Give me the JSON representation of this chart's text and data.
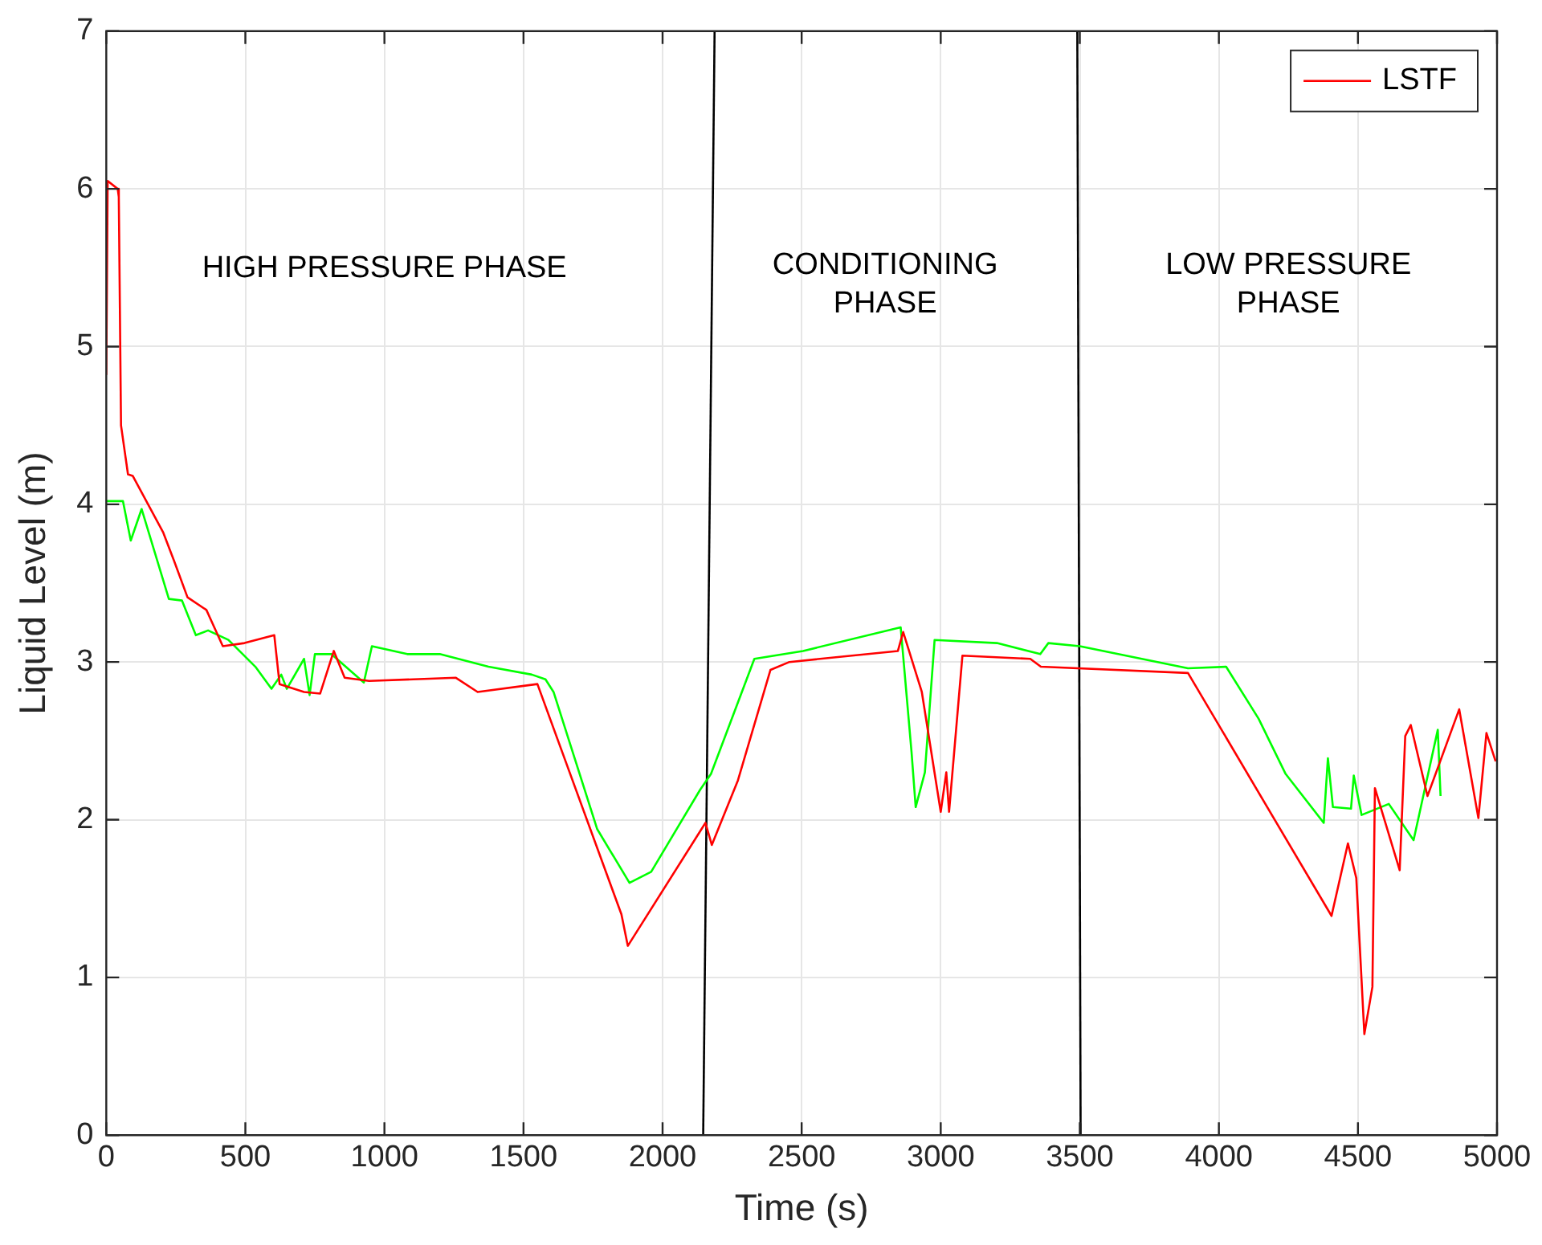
{
  "chart_data": {
    "type": "line",
    "xlabel": "Time (s)",
    "ylabel": "Liquid Level (m)",
    "xlim": [
      0,
      5000
    ],
    "xticks": [
      0,
      500,
      1000,
      1500,
      2000,
      2500,
      3000,
      3500,
      4000,
      4500,
      5000
    ],
    "ylim": [
      0,
      7
    ],
    "yticks": [
      0,
      1,
      2,
      3,
      4,
      5,
      6,
      7
    ],
    "grid": true,
    "legend": "top right",
    "marker": "none",
    "line_style": "solid",
    "annotations": [
      "HIGH PRESSURE PHASE",
      "CONDITIONING\nPHASE",
      "LOW PRESSURE\nPHASE"
    ],
    "series": [
      {
        "name": "LSTF",
        "color": "#ff0000",
        "x": [
          0,
          5,
          41,
          45,
          53,
          78,
          95,
          205,
          244,
          292,
          360,
          419,
          497,
          604,
          623,
          711,
          769,
          818,
          857,
          945,
          1257,
          1335,
          1550,
          1852,
          1875,
          2154,
          2177,
          2271,
          2388,
          2456,
          2846,
          2865,
          2932,
          3000,
          3020,
          3030,
          3078,
          3322,
          3360,
          3889,
          4405,
          4464,
          4494,
          4523,
          4552,
          4561,
          4650,
          4670,
          4690,
          4750,
          4864,
          4933,
          4962,
          4995
        ],
        "values": [
          4.82,
          6.05,
          6.0,
          5.95,
          4.5,
          4.19,
          4.18,
          3.82,
          3.64,
          3.41,
          3.33,
          3.1,
          3.12,
          3.17,
          2.86,
          2.81,
          2.8,
          3.07,
          2.9,
          2.88,
          2.9,
          2.81,
          2.86,
          1.4,
          1.2,
          1.98,
          1.84,
          2.25,
          2.95,
          3.0,
          3.07,
          3.19,
          2.81,
          2.05,
          2.3,
          2.05,
          3.04,
          3.02,
          2.97,
          2.93,
          1.39,
          1.85,
          1.63,
          0.64,
          0.94,
          2.2,
          1.68,
          2.53,
          2.6,
          2.15,
          2.7,
          2.01,
          2.55,
          2.37
        ]
      },
      {
        "color": "#00ff00",
        "x": [
          0,
          60,
          88,
          127,
          225,
          272,
          322,
          366,
          439,
          536,
          594,
          629,
          649,
          711,
          731,
          750,
          809,
          926,
          955,
          1082,
          1199,
          1374,
          1530,
          1579,
          1608,
          1765,
          1881,
          1959,
          2135,
          2174,
          2330,
          2505,
          2856,
          2895,
          2910,
          2943,
          2978,
          3202,
          3358,
          3387,
          3500,
          3889,
          4026,
          4143,
          4240,
          4377,
          4392,
          4410,
          4475,
          4485,
          4513,
          4611,
          4700,
          4787,
          4797
        ],
        "values": [
          4.02,
          4.02,
          3.77,
          3.97,
          3.4,
          3.39,
          3.17,
          3.2,
          3.14,
          2.97,
          2.83,
          2.92,
          2.83,
          3.02,
          2.79,
          3.05,
          3.05,
          2.87,
          3.1,
          3.05,
          3.05,
          2.97,
          2.92,
          2.89,
          2.81,
          1.94,
          1.6,
          1.67,
          2.19,
          2.29,
          3.02,
          3.07,
          3.22,
          2.43,
          2.08,
          2.3,
          3.14,
          3.12,
          3.05,
          3.12,
          3.1,
          2.96,
          2.97,
          2.64,
          2.29,
          1.98,
          2.39,
          2.08,
          2.07,
          2.28,
          2.03,
          2.1,
          1.87,
          2.57,
          2.15
        ]
      },
      {
        "color": "#000000",
        "x": [
          2146,
          2187
        ],
        "values": [
          0,
          7
        ]
      },
      {
        "color": "#000000",
        "x": [
          3503,
          3491
        ],
        "values": [
          0,
          7
        ]
      }
    ]
  }
}
